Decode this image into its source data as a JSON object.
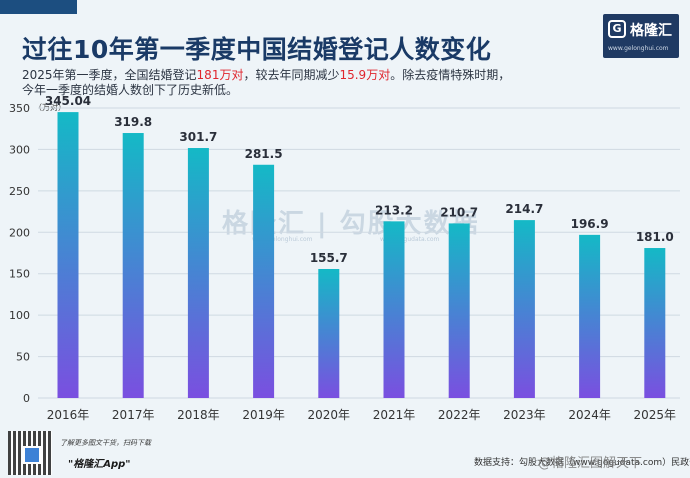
{
  "header": {
    "title": "过往10年第一季度中国结婚登记人数变化",
    "subtitle_line1_a": "2025年第一季度，全国结婚登记",
    "subtitle_line1_hl1": "181万对",
    "subtitle_line1_b": "，较去年同期减少",
    "subtitle_line1_hl2": "15.9万对",
    "subtitle_line1_c": "。除去疫情特殊时期，",
    "subtitle_line2": "今年一季度的结婚人数创下了历史新低。"
  },
  "logo": {
    "mark": "G",
    "name": "格隆汇",
    "url": "www.gelonghui.com"
  },
  "chart_data": {
    "type": "bar",
    "title": "过往10年第一季度中国结婚登记人数变化",
    "ylabel": "（万对）",
    "xlabel": "",
    "categories": [
      "2016年",
      "2017年",
      "2018年",
      "2019年",
      "2020年",
      "2021年",
      "2022年",
      "2023年",
      "2024年",
      "2025年"
    ],
    "values": [
      345.04,
      319.8,
      301.7,
      281.5,
      155.7,
      213.2,
      210.7,
      214.7,
      196.9,
      181.0
    ],
    "value_labels": [
      "345.04",
      "319.8",
      "301.7",
      "281.5",
      "155.7",
      "213.2",
      "210.7",
      "214.7",
      "196.9",
      "181.0"
    ],
    "ylim": [
      0,
      350
    ],
    "yticks": [
      0,
      50,
      100,
      150,
      200,
      250,
      300,
      350
    ],
    "grid": true,
    "colors": {
      "bar_top": "#14b9c6",
      "bar_bottom": "#7a4fe0",
      "grid": "#cfd9e2",
      "axis_text": "#333333"
    }
  },
  "watermark": {
    "center": "格隆汇 | 勾股大数据",
    "center_url_left": "www.gelonghui.com",
    "center_url_right": "www.gogudata.com",
    "weibo": "@格隆汇图解天下"
  },
  "footer": {
    "note": "了解更多图文干货，扫码下载",
    "app": "\"格隆汇App\"",
    "source": "数据支持：勾股大数据（www.gogudata.com）民政部"
  }
}
